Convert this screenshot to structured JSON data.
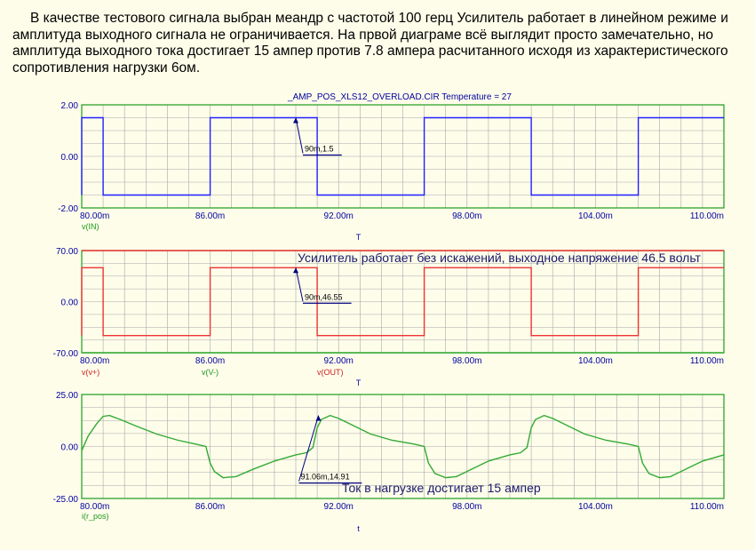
{
  "intro_text": "В качестве тестового сигнала выбран меандр с частотой 100 герц Усилитель работает в линейном режиме и амплитуда выходного сигнала не ограничивается. На првой диаграме всё выглядит просто замечательно, но амплитуда выходного тока достигает 15 ампер против 7.8 ампера расчитанного исходя из характеристического сопротивления нагрузки 6ом.",
  "colors": {
    "background": "#fefdea",
    "grid": "#a8a8a8",
    "frame": "#1d9b1d",
    "axis_text": "#0000a0",
    "blue_trace": "#2020ff",
    "red_trace": "#ee3333",
    "green_trace": "#33aa33",
    "marker": "#000080",
    "label_green": "#1a9a1a",
    "label_red": "#d02020"
  },
  "chart_data": [
    {
      "type": "line",
      "title": "_AMP_POS_XLS12_OVERLOAD.CIR Temperature = 27",
      "x_tick_labels": [
        "80.00m",
        "86.00m",
        "92.00m",
        "98.00m",
        "104.00m",
        "110.00m"
      ],
      "x_ticks": [
        0.08,
        0.086,
        0.092,
        0.098,
        0.104,
        0.11
      ],
      "y_tick_labels": [
        "2.00",
        "0.00",
        "-2.00"
      ],
      "y_ticks": [
        2,
        0,
        -2
      ],
      "xlim": [
        0.08,
        0.11
      ],
      "ylim": [
        -2,
        2
      ],
      "xlabel": "T",
      "legend": [
        {
          "label": "v(IN)",
          "color": "#1a9a1a"
        }
      ],
      "series": [
        {
          "name": "v(IN)",
          "color": "#2020ff",
          "x": [
            0.08,
            0.08,
            0.081,
            0.081,
            0.086,
            0.086,
            0.091,
            0.091,
            0.096,
            0.096,
            0.101,
            0.101,
            0.106,
            0.106,
            0.11
          ],
          "y": [
            -1.5,
            1.5,
            1.5,
            -1.5,
            -1.5,
            1.5,
            1.5,
            -1.5,
            -1.5,
            1.5,
            1.5,
            -1.5,
            -1.5,
            1.5,
            1.5
          ]
        }
      ],
      "annotation": {
        "label": "90m,1.5",
        "x": 0.09,
        "y": 1.5
      }
    },
    {
      "type": "line",
      "x_tick_labels": [
        "80.00m",
        "86.00m",
        "92.00m",
        "98.00m",
        "104.00m",
        "110.00m"
      ],
      "x_ticks": [
        0.08,
        0.086,
        0.092,
        0.098,
        0.104,
        0.11
      ],
      "y_tick_labels": [
        "70.00",
        "0.00",
        "-70.00"
      ],
      "y_ticks": [
        70,
        0,
        -70
      ],
      "xlim": [
        0.08,
        0.11
      ],
      "ylim": [
        -70,
        70
      ],
      "xlabel": "T",
      "legend": [
        {
          "label": "v(v+)",
          "color": "#d02020"
        },
        {
          "label": "v(V-)",
          "color": "#1a9a1a"
        },
        {
          "label": "v(OUT)",
          "color": "#d02020"
        }
      ],
      "series": [
        {
          "name": "v(v+)",
          "color": "#ee3333",
          "x": [
            0.08,
            0.11
          ],
          "y": [
            70,
            70
          ]
        },
        {
          "name": "v(OUT)",
          "color": "#ee3333",
          "x": [
            0.08,
            0.08,
            0.081,
            0.081,
            0.086,
            0.086,
            0.091,
            0.091,
            0.096,
            0.096,
            0.101,
            0.101,
            0.106,
            0.106,
            0.11
          ],
          "y": [
            -46.5,
            46.5,
            46.5,
            -46.5,
            -46.5,
            46.5,
            46.5,
            -46.5,
            -46.5,
            46.5,
            46.5,
            -46.5,
            -46.5,
            46.5,
            46.5
          ]
        },
        {
          "name": "v(V-)",
          "color": "#33aa33",
          "x": [
            0.08,
            0.11
          ],
          "y": [
            -70,
            -70
          ]
        }
      ],
      "annotation": {
        "label": "90m,46.55",
        "x": 0.09,
        "y": 46.55
      },
      "note": "Усилитель работает без искажений, выходное напряжение 46.5 вольт"
    },
    {
      "type": "line",
      "x_tick_labels": [
        "80.00m",
        "86.00m",
        "92.00m",
        "98.00m",
        "104.00m",
        "110.00m"
      ],
      "x_ticks": [
        0.08,
        0.086,
        0.092,
        0.098,
        0.104,
        0.11
      ],
      "y_tick_labels": [
        "25.00",
        "0.00",
        "-25.00"
      ],
      "y_ticks": [
        25,
        0,
        -25
      ],
      "xlim": [
        0.08,
        0.11
      ],
      "ylim": [
        -25,
        25
      ],
      "xlabel": "t",
      "legend": [
        {
          "label": "i(r_pos)",
          "color": "#1a9a1a"
        }
      ],
      "series": [
        {
          "name": "i(r_pos)",
          "color": "#33aa33",
          "x": [
            0.08,
            0.0803,
            0.0807,
            0.081,
            0.0813,
            0.0818,
            0.0825,
            0.0835,
            0.0845,
            0.0853,
            0.0858,
            0.086,
            0.0862,
            0.0866,
            0.0872,
            0.088,
            0.089,
            0.09,
            0.0905,
            0.0908,
            0.091,
            0.0912,
            0.0916,
            0.092,
            0.0927,
            0.0935,
            0.0945,
            0.0955,
            0.096,
            0.0962,
            0.0965,
            0.097,
            0.0975,
            0.0982,
            0.099,
            0.1,
            0.1005,
            0.1008,
            0.101,
            0.1012,
            0.1016,
            0.102,
            0.1027,
            0.1035,
            0.1045,
            0.1055,
            0.106,
            0.1062,
            0.1065,
            0.107,
            0.1075,
            0.1082,
            0.109,
            0.11
          ],
          "y": [
            -2,
            5,
            11,
            14.5,
            14.9,
            13,
            10,
            6,
            3,
            1.2,
            0,
            -8,
            -12,
            -15,
            -14.5,
            -11,
            -7,
            -4,
            -3,
            -0.5,
            9,
            13,
            14.9,
            13.5,
            10,
            6,
            3,
            1.2,
            0,
            -8,
            -13,
            -15,
            -14.5,
            -11,
            -7,
            -4,
            -3,
            -0.5,
            9,
            13,
            14.9,
            13.5,
            10,
            6,
            3,
            1.2,
            0,
            -8,
            -13,
            -15,
            -14.5,
            -11,
            -7,
            -4
          ]
        }
      ],
      "annotation": {
        "label": "91.06m,14.91",
        "x": 0.09106,
        "y": 14.91
      },
      "note": "Ток в нагрузке достигает 15 ампер"
    }
  ]
}
